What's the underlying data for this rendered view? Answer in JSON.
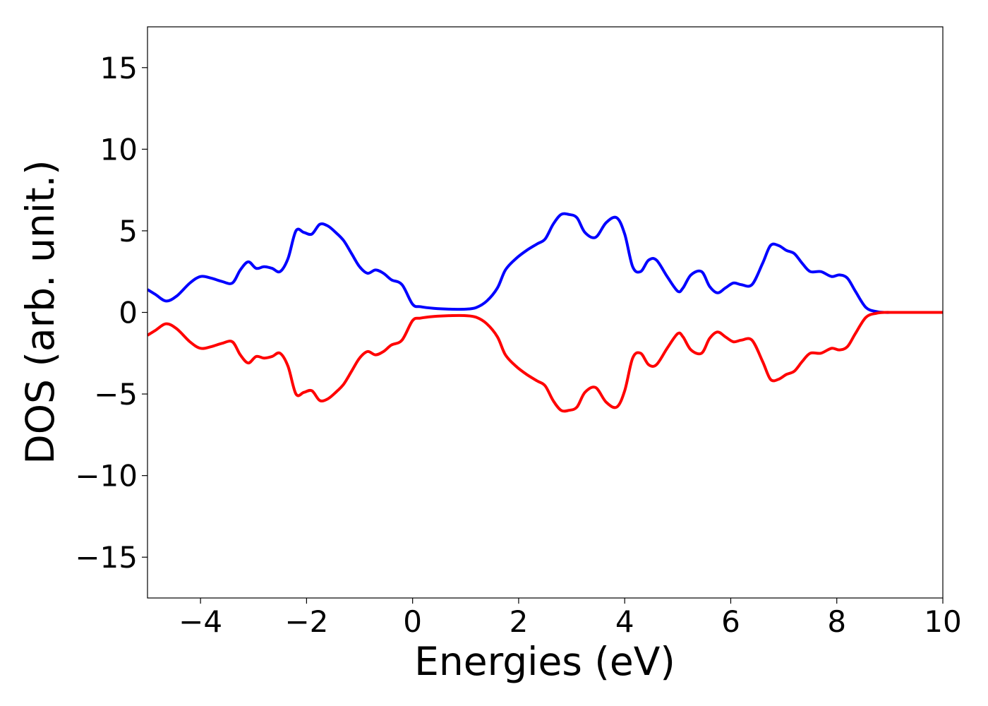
{
  "chart_data": {
    "type": "line",
    "title": "",
    "xlabel": "Energies (eV)",
    "ylabel": "DOS (arb. unit.)",
    "xlim": [
      -5,
      10
    ],
    "ylim": [
      -17.5,
      17.5
    ],
    "xticks": [
      -4,
      -2,
      0,
      2,
      4,
      6,
      8,
      10
    ],
    "xtick_labels": [
      "−4",
      "−2",
      "0",
      "2",
      "4",
      "6",
      "8",
      "10"
    ],
    "yticks": [
      15,
      10,
      5,
      0,
      -5,
      -10,
      -15
    ],
    "ytick_labels": [
      "15",
      "10",
      "5",
      "0",
      "−5",
      "−10",
      "−15"
    ],
    "grid": false,
    "legend": false,
    "x": [
      -5.0,
      -4.85,
      -4.65,
      -4.45,
      -4.2,
      -4.0,
      -3.8,
      -3.6,
      -3.4,
      -3.25,
      -3.1,
      -2.95,
      -2.8,
      -2.65,
      -2.5,
      -2.35,
      -2.2,
      -2.05,
      -1.9,
      -1.75,
      -1.6,
      -1.45,
      -1.3,
      -1.15,
      -1.0,
      -0.85,
      -0.7,
      -0.55,
      -0.4,
      -0.2,
      0.0,
      0.15,
      0.4,
      0.7,
      1.0,
      1.2,
      1.4,
      1.6,
      1.75,
      1.95,
      2.15,
      2.35,
      2.5,
      2.65,
      2.8,
      2.95,
      3.1,
      3.25,
      3.45,
      3.65,
      3.85,
      4.0,
      4.15,
      4.3,
      4.45,
      4.6,
      4.8,
      5.0,
      5.1,
      5.25,
      5.45,
      5.6,
      5.75,
      5.9,
      6.05,
      6.2,
      6.4,
      6.6,
      6.75,
      6.9,
      7.05,
      7.2,
      7.35,
      7.5,
      7.7,
      7.9,
      8.05,
      8.2,
      8.35,
      8.55,
      8.75,
      8.9,
      9.1,
      9.5,
      10.0
    ],
    "series": [
      {
        "color": "#0000ff",
        "values": [
          1.4,
          1.1,
          0.7,
          1.0,
          1.8,
          2.2,
          2.1,
          1.9,
          1.8,
          2.6,
          3.1,
          2.7,
          2.8,
          2.7,
          2.5,
          3.3,
          5.0,
          4.9,
          4.8,
          5.4,
          5.3,
          4.9,
          4.4,
          3.6,
          2.8,
          2.4,
          2.6,
          2.4,
          2.0,
          1.7,
          0.5,
          0.35,
          0.25,
          0.2,
          0.2,
          0.3,
          0.7,
          1.5,
          2.6,
          3.3,
          3.8,
          4.2,
          4.5,
          5.4,
          6.0,
          6.0,
          5.8,
          4.9,
          4.6,
          5.5,
          5.8,
          4.8,
          2.8,
          2.5,
          3.2,
          3.2,
          2.2,
          1.3,
          1.5,
          2.3,
          2.5,
          1.6,
          1.2,
          1.5,
          1.8,
          1.7,
          1.7,
          3.0,
          4.1,
          4.1,
          3.8,
          3.6,
          3.0,
          2.5,
          2.5,
          2.2,
          2.3,
          2.1,
          1.3,
          0.3,
          0.05,
          0.0,
          0.0,
          0.0,
          0.0
        ]
      },
      {
        "color": "#ff0000",
        "values": [
          -1.4,
          -1.1,
          -0.7,
          -1.0,
          -1.8,
          -2.2,
          -2.1,
          -1.9,
          -1.8,
          -2.6,
          -3.1,
          -2.7,
          -2.8,
          -2.7,
          -2.5,
          -3.3,
          -5.0,
          -4.9,
          -4.8,
          -5.4,
          -5.3,
          -4.9,
          -4.4,
          -3.6,
          -2.8,
          -2.4,
          -2.6,
          -2.4,
          -2.0,
          -1.7,
          -0.5,
          -0.35,
          -0.25,
          -0.2,
          -0.2,
          -0.3,
          -0.7,
          -1.5,
          -2.6,
          -3.3,
          -3.8,
          -4.2,
          -4.5,
          -5.4,
          -6.0,
          -6.0,
          -5.8,
          -4.9,
          -4.6,
          -5.5,
          -5.8,
          -4.8,
          -2.8,
          -2.5,
          -3.2,
          -3.2,
          -2.2,
          -1.3,
          -1.5,
          -2.3,
          -2.5,
          -1.6,
          -1.2,
          -1.5,
          -1.8,
          -1.7,
          -1.7,
          -3.0,
          -4.1,
          -4.1,
          -3.8,
          -3.6,
          -3.0,
          -2.5,
          -2.5,
          -2.2,
          -2.3,
          -2.1,
          -1.3,
          -0.3,
          -0.05,
          0.0,
          0.0,
          0.0,
          0.0
        ]
      }
    ]
  }
}
